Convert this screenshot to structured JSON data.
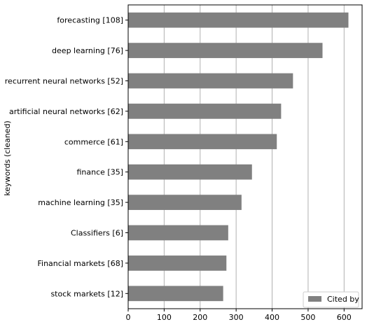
{
  "chart_data": {
    "type": "bar",
    "orientation": "horizontal",
    "categories": [
      "forecasting [108]",
      "deep learning [76]",
      "recurrent neural networks [52]",
      "artificial neural networks [62]",
      "commerce [61]",
      "finance [35]",
      "machine learning [35]",
      "Classifiers [6]",
      "Financial markets [68]",
      "stock markets [12]"
    ],
    "series": [
      {
        "name": "Cited by",
        "values": [
          612,
          540,
          458,
          425,
          413,
          344,
          315,
          278,
          273,
          264
        ]
      }
    ],
    "xlabel": "",
    "ylabel": "keywords (cleaned)",
    "xlim": [
      0,
      650
    ],
    "xticks": [
      0,
      100,
      200,
      300,
      400,
      500,
      600
    ],
    "grid": "vertical",
    "legend": "bottom-right",
    "bar_color": "#808080"
  }
}
